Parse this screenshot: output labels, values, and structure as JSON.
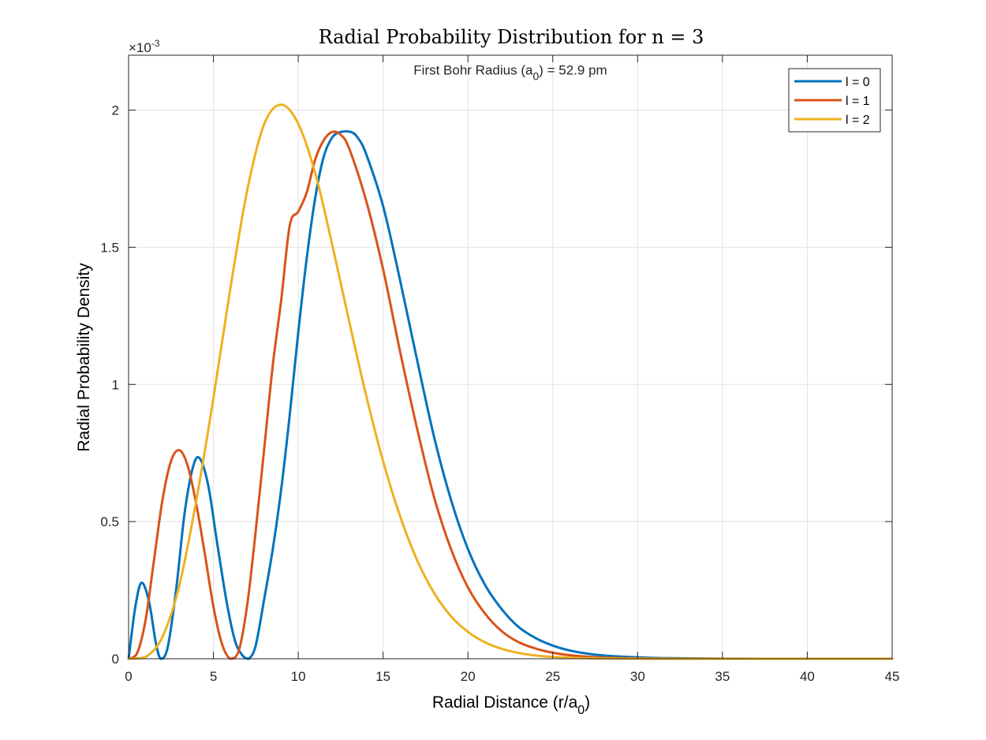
{
  "chart_data": {
    "type": "line",
    "title": "Radial Probability Distribution for n = 3",
    "xlabel": "Radial Distance (r/a",
    "xlabel_sub": "0",
    "xlabel_end": ")",
    "ylabel": "Radial Probability Density",
    "y_exponent_label": "×10",
    "y_exponent_power": "-3",
    "y_scale": 0.001,
    "xlim": [
      0,
      45
    ],
    "ylim": [
      0,
      0.0022
    ],
    "xticks": [
      0,
      5,
      10,
      15,
      20,
      25,
      30,
      35,
      40,
      45
    ],
    "xtick_labels": [
      "0",
      "5",
      "10",
      "15",
      "20",
      "25",
      "30",
      "35",
      "40",
      "45"
    ],
    "yticks": [
      0,
      0.0005,
      0.001,
      0.0015,
      0.002
    ],
    "ytick_labels": [
      "0",
      "0.5",
      "1",
      "1.5",
      "2"
    ],
    "grid": true,
    "legend_position": "top-right",
    "annotation": {
      "text": "First Bohr Radius (a",
      "sub": "0",
      "text_end": ") = 52.9 pm",
      "x": 22.5,
      "y": 0.00213
    },
    "series": [
      {
        "name": "l = 0",
        "color": "#0072BD",
        "x": [
          0,
          0.4,
          0.76,
          1.2,
          1.6,
          1.9,
          2.3,
          2.8,
          3.3,
          3.8,
          4.2,
          4.7,
          5.2,
          5.8,
          6.3,
          6.8,
          7.1,
          7.5,
          8.0,
          8.5,
          9.0,
          9.5,
          10.0,
          10.5,
          11.0,
          11.5,
          12.0,
          12.5,
          13.1,
          13.5,
          14.0,
          15.0,
          16.0,
          17.0,
          18.0,
          19.0,
          20.0,
          21.0,
          22.0,
          23.0,
          24.0,
          25.0,
          26.0,
          27.0,
          28.0,
          30.0,
          32.0,
          35.0,
          40.0,
          45.0
        ],
        "values": [
          0,
          0.00019,
          0.000277,
          0.00021,
          6e-05,
          0,
          4e-05,
          0.00025,
          0.00053,
          0.0007,
          0.00073,
          0.00063,
          0.00043,
          0.0002,
          6e-05,
          6e-06,
          0,
          5e-05,
          0.00022,
          0.0004,
          0.00062,
          0.00089,
          0.00119,
          0.00146,
          0.00168,
          0.00183,
          0.0019,
          0.00192,
          0.00192,
          0.0019,
          0.00184,
          0.00165,
          0.00138,
          0.00109,
          0.00081,
          0.00058,
          0.0004,
          0.00027,
          0.00018,
          0.000115,
          7.5e-05,
          4.8e-05,
          3e-05,
          1.9e-05,
          1.2e-05,
          5e-06,
          2e-06,
          5e-07,
          0,
          0
        ]
      },
      {
        "name": "l = 1",
        "color": "#D95319",
        "x": [
          0,
          0.5,
          1.0,
          1.5,
          2.0,
          2.5,
          3.0,
          3.5,
          4.0,
          4.5,
          5.0,
          5.5,
          6.0,
          6.5,
          7.0,
          7.5,
          8.0,
          8.5,
          9.0,
          9.5,
          10.0,
          10.5,
          11.0,
          11.5,
          12.0,
          12.5,
          13.0,
          14.0,
          15.0,
          16.0,
          17.0,
          18.0,
          19.0,
          20.0,
          21.0,
          22.0,
          23.0,
          24.0,
          25.0,
          26.0,
          27.0,
          28.0,
          30.0,
          32.0,
          35.0,
          40.0,
          45.0
        ],
        "values": [
          0,
          2e-05,
          0.00014,
          0.00036,
          0.00058,
          0.00072,
          0.00076,
          0.0007,
          0.00056,
          0.00038,
          0.00019,
          5.5e-05,
          0,
          3e-05,
          0.0002,
          0.00047,
          0.00077,
          0.00107,
          0.00131,
          0.00158,
          0.00163,
          0.0017,
          0.00182,
          0.00189,
          0.00192,
          0.00191,
          0.00186,
          0.00167,
          0.00142,
          0.00112,
          0.00084,
          0.00059,
          0.0004,
          0.00026,
          0.000165,
          0.0001,
          6e-05,
          3.7e-05,
          2.2e-05,
          1.3e-05,
          7.5e-06,
          4e-06,
          1.5e-06,
          5e-07,
          0,
          0,
          0
        ]
      },
      {
        "name": "l = 2",
        "color": "#EDB120",
        "x": [
          0,
          1.0,
          2.0,
          3.0,
          4.0,
          5.0,
          6.0,
          7.0,
          8.0,
          9.0,
          10.0,
          11.0,
          12.0,
          13.0,
          14.0,
          15.0,
          16.0,
          17.0,
          18.0,
          19.0,
          20.0,
          21.0,
          22.0,
          23.0,
          24.0,
          25.0,
          26.0,
          27.0,
          28.0,
          30.0,
          32.0,
          35.0,
          40.0,
          45.0
        ],
        "values": [
          0,
          6e-06,
          8e-05,
          0.00027,
          0.00058,
          0.00095,
          0.00135,
          0.00171,
          0.00195,
          0.00202,
          0.00195,
          0.00177,
          0.00151,
          0.00123,
          0.00096,
          0.00072,
          0.00052,
          0.00036,
          0.00024,
          0.000155,
          9.8e-05,
          6e-05,
          3.6e-05,
          2.1e-05,
          1.2e-05,
          6.7e-06,
          3.7e-06,
          2e-06,
          1e-06,
          3e-07,
          0,
          0,
          0,
          0
        ]
      }
    ]
  }
}
